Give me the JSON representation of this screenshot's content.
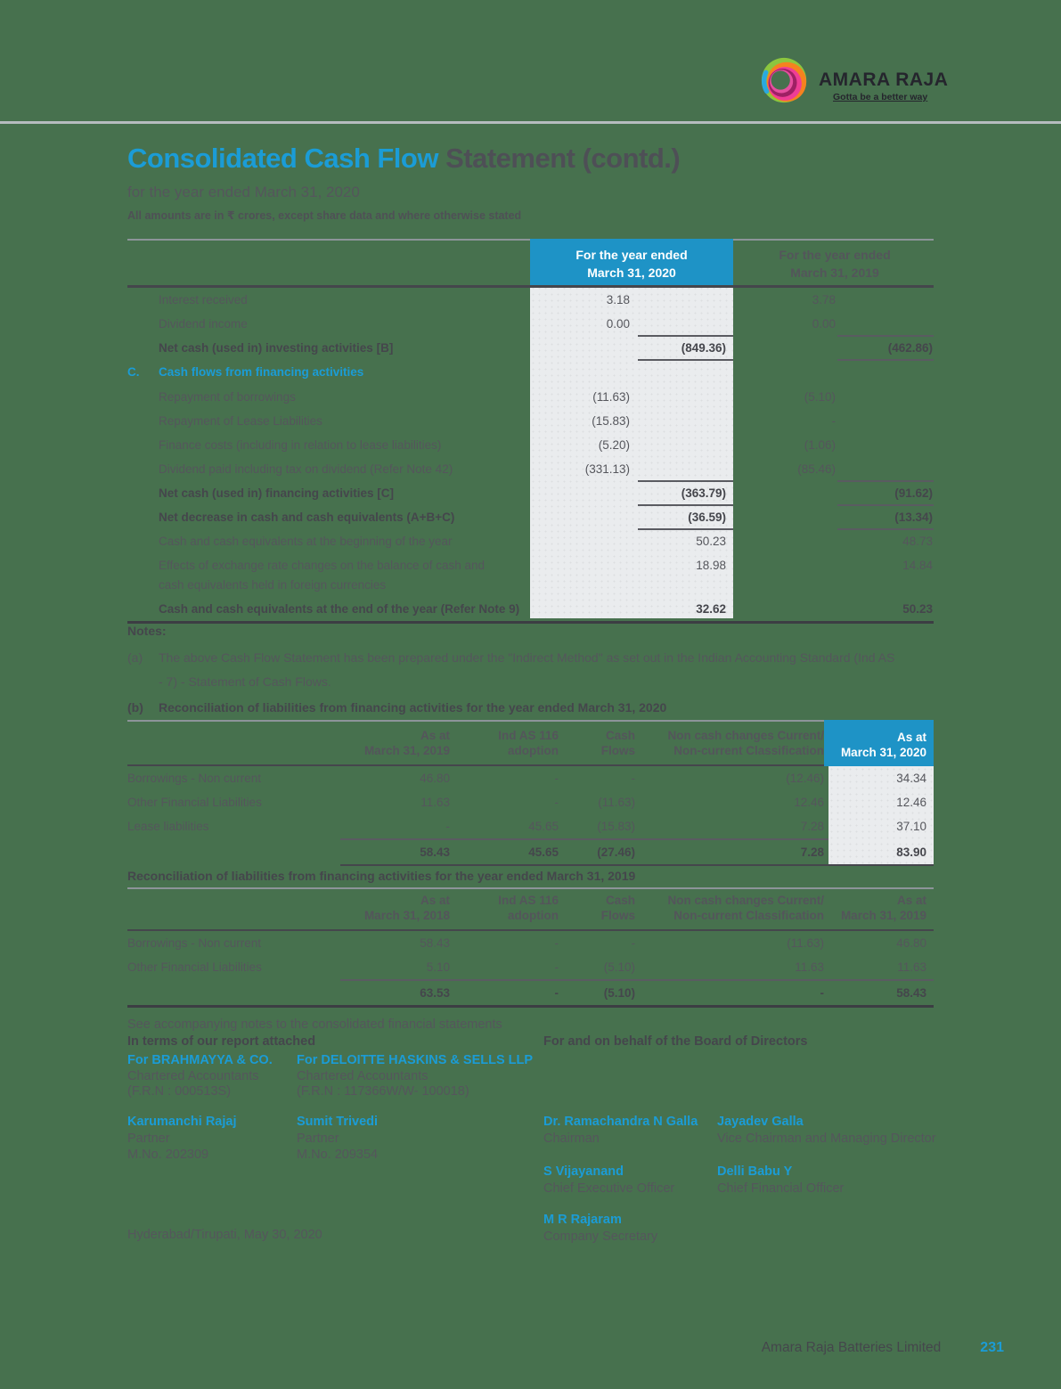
{
  "page": {
    "background": "#47714e",
    "accent_blue": "#1b9cd6",
    "header_blue_bg": "#1e93c6",
    "brand": {
      "name": "AMARA RAJA",
      "tagline": "Gotta be a better way"
    },
    "title": {
      "highlight": "Consolidated Cash Flow",
      "rest": " Statement (contd.)"
    },
    "subtitle": "for the year ended March 31, 2020",
    "amounts_note": "All amounts are in ₹ crores, except share data and where otherwise stated",
    "footer": {
      "company": "Amara Raja Batteries Limited",
      "page_number": "231"
    }
  },
  "main_table": {
    "col2020": [
      "For the year ended",
      "March 31, 2020"
    ],
    "col2019": [
      "For the year ended",
      "March 31, 2019"
    ],
    "rows": [
      {
        "type": "item",
        "label": "Interest received",
        "v2020": "3.18",
        "v2019": "3.78",
        "col": "inner"
      },
      {
        "type": "item",
        "label": "Dividend income",
        "v2020": "0.00",
        "v2019": "0.00",
        "col": "inner"
      },
      {
        "type": "bold",
        "label": "Net cash (used in) investing activities [B]",
        "v2020": "(849.36)",
        "v2019": "(462.86)",
        "col": "outer",
        "rule_above": true,
        "rule_below": true
      },
      {
        "type": "section",
        "letter": "C.",
        "label": "Cash flows from financing activities"
      },
      {
        "type": "item",
        "label": "Repayment of borrowings",
        "v2020": "(11.63)",
        "v2019": "(5.10)",
        "col": "inner"
      },
      {
        "type": "item",
        "label": "Repayment of Lease Liabilities",
        "v2020": "(15.83)",
        "v2019": "-",
        "col": "inner"
      },
      {
        "type": "item",
        "label": "Finance costs (including in relation to lease liabilities)",
        "v2020": "(5.20)",
        "v2019": "(1.06)",
        "col": "inner"
      },
      {
        "type": "item",
        "label": "Dividend paid including tax on dividend (Refer Note 42)",
        "v2020": "(331.13)",
        "v2019": "(85.46)",
        "col": "inner"
      },
      {
        "type": "bold",
        "label": "Net cash (used in) financing activities [C]",
        "v2020": "(363.79)",
        "v2019": "(91.62)",
        "col": "outer",
        "rule_above": true,
        "rule_below": true
      },
      {
        "type": "bold",
        "label": "Net decrease in cash and cash equivalents (A+B+C)",
        "v2020": "(36.59)",
        "v2019": "(13.34)",
        "col": "outer",
        "rule_below": true
      },
      {
        "type": "item",
        "label": "Cash and cash equivalents at the beginning of the year",
        "v2020": "50.23",
        "v2019": "48.73",
        "col": "outer"
      },
      {
        "type": "item",
        "label": "Effects of exchange rate changes on the balance of cash and\ncash equivalents held in foreign currencies",
        "v2020": "18.98",
        "v2019": "14.84",
        "col": "outer"
      },
      {
        "type": "bold",
        "label": "Cash and cash equivalents at the end of the year (Refer Note 9)",
        "v2020": "32.62",
        "v2019": "50.23",
        "col": "outer"
      }
    ]
  },
  "notes": {
    "heading": "Notes:",
    "a_prefix": "(a)",
    "a_text": "The above Cash Flow Statement has been prepared under the \"Indirect Method\" as set out in the Indian Accounting Standard (Ind AS - 7) - Statement of Cash Flows.",
    "b_prefix": "(b)",
    "b_title": "Reconciliation of liabilities from financing activities for the year ended March 31, 2020"
  },
  "recon_2020": {
    "headers": [
      "",
      "As at\nMarch 31, 2019",
      "Ind AS 116\nadoption",
      "Cash\nFlows",
      "Non cash changes Current/\nNon-current Classification",
      "As at\nMarch 31, 2020"
    ],
    "rows": [
      [
        "Borrowings - Non current",
        "46.80",
        "-",
        "-",
        "(12.46)",
        "34.34"
      ],
      [
        "Other Financial Liabilities",
        "11.63",
        "-",
        "(11.63)",
        "12.46",
        "12.46"
      ],
      [
        "Lease liabilities",
        "-",
        "45.65",
        "(15.83)",
        "7.28",
        "37.10"
      ]
    ],
    "totals": [
      "",
      "58.43",
      "45.65",
      "(27.46)",
      "7.28",
      "83.90"
    ]
  },
  "recon_2019": {
    "title": "Reconciliation of liabilities from financing activities for the year ended March 31, 2019",
    "headers": [
      "",
      "As at\nMarch 31, 2018",
      "Ind AS 116\nadoption",
      "Cash\nFlows",
      "Non cash changes Current/\nNon-current Classification",
      "As at\nMarch 31, 2019"
    ],
    "rows": [
      [
        "Borrowings - Non current",
        "58.43",
        "-",
        "-",
        "(11.63)",
        "46.80"
      ],
      [
        "Other Financial Liabilities",
        "5.10",
        "-",
        "(5.10)",
        "11.63",
        "11.63"
      ]
    ],
    "totals": [
      "",
      "63.53",
      "-",
      "(5.10)",
      "-",
      "58.43"
    ]
  },
  "signatures": {
    "accompanying_note": "See accompanying notes to the consolidated financial statements",
    "in_terms": "In terms of our report attached",
    "board_heading": "For and on behalf of the Board of Directors",
    "firm1": {
      "name": "For BRAHMAYYA & CO.",
      "descriptor": "Chartered Accountants",
      "frn": "(F.R.N : 000513S)"
    },
    "firm2": {
      "name": "For DELOITTE HASKINS & SELLS LLP",
      "descriptor": "Chartered Accountants",
      "frn": "(F.R.N : 117366W/W- 100018)"
    },
    "partner1": {
      "name": "Karumanchi Rajaj",
      "role": "Partner",
      "membership": "M.No. 202309"
    },
    "partner2": {
      "name": "Sumit Trivedi",
      "role": "Partner",
      "membership": "M.No. 209354"
    },
    "director1": {
      "name": "Dr. Ramachandra N Galla",
      "role": "Chairman"
    },
    "director2": {
      "name": "Jayadev Galla",
      "role": "Vice Chairman and Managing Director"
    },
    "director3": {
      "name": "S Vijayanand",
      "role": "Chief Executive Officer"
    },
    "director4": {
      "name": "Delli Babu Y",
      "role": "Chief Financial Officer"
    },
    "director5": {
      "name": "M R Rajaram",
      "role": "Company Secretary"
    },
    "place_date": "Hyderabad/Tirupati, May 30, 2020"
  }
}
